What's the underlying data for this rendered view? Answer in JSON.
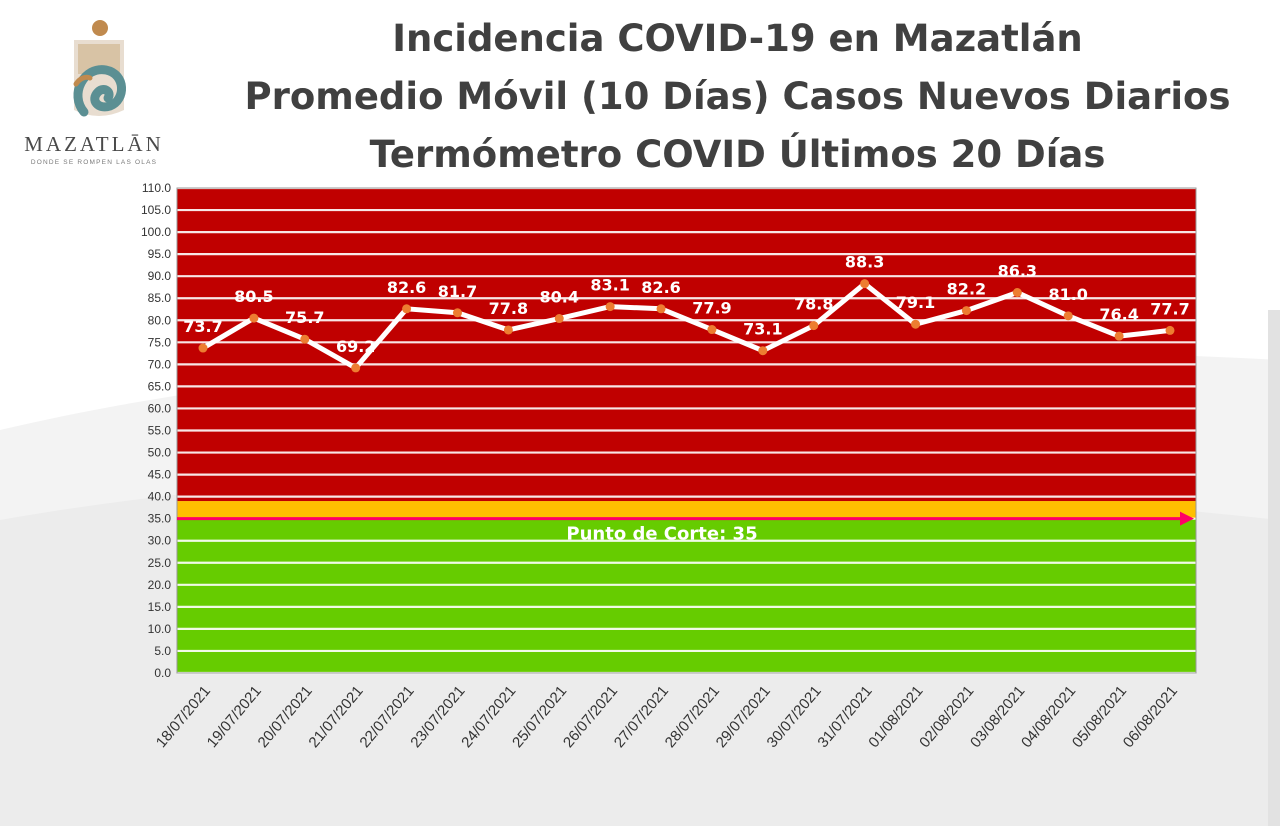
{
  "logo": {
    "name": "MAZATLĀN",
    "tagline": "DONDE SE ROMPEN LAS OLAS"
  },
  "titles": [
    "Incidencia COVID-19 en Mazatlán",
    "Promedio Móvil (10 Días) Casos Nuevos Diarios",
    "Termómetro COVID Últimos 20 Días"
  ],
  "colors": {
    "danger_zone": "#c00000",
    "warning_band": "#ffc000",
    "safe_zone": "#66cc00",
    "cutoff_arrow": "#ff0066",
    "line": "#ffffff",
    "marker": "#ed7d31"
  },
  "chart_data": {
    "type": "line",
    "categories": [
      "18/07/2021",
      "19/07/2021",
      "20/07/2021",
      "21/07/2021",
      "22/07/2021",
      "23/07/2021",
      "24/07/2021",
      "25/07/2021",
      "26/07/2021",
      "27/07/2021",
      "28/07/2021",
      "29/07/2021",
      "30/07/2021",
      "31/07/2021",
      "01/08/2021",
      "02/08/2021",
      "03/08/2021",
      "04/08/2021",
      "05/08/2021",
      "06/08/2021"
    ],
    "values": [
      73.7,
      80.5,
      75.7,
      69.2,
      82.6,
      81.7,
      77.8,
      80.4,
      83.1,
      82.6,
      77.9,
      73.1,
      78.8,
      88.3,
      79.1,
      82.2,
      86.3,
      81.0,
      76.4,
      77.7
    ],
    "data_labels": [
      "73.7",
      "80.5",
      "75.7",
      "69.2",
      "82.6",
      "81.7",
      "77.8",
      "80.4",
      "83.1",
      "82.6",
      "77.9",
      "73.1",
      "78.8",
      "88.3",
      "79.1",
      "82.2",
      "86.3",
      "81.0",
      "76.4",
      "77.7"
    ],
    "ylim": [
      0,
      110
    ],
    "ytick_labels": [
      "0.0",
      "5.0",
      "10.0",
      "15.0",
      "20.0",
      "25.0",
      "30.0",
      "35.0",
      "40.0",
      "45.0",
      "50.0",
      "55.0",
      "60.0",
      "65.0",
      "70.0",
      "75.0",
      "80.0",
      "85.0",
      "90.0",
      "95.0",
      "100.0",
      "105.0",
      "110.0"
    ],
    "bands": [
      {
        "from": 0,
        "to": 35,
        "color": "#66cc00"
      },
      {
        "from": 35,
        "to": 39,
        "color": "#ffc000"
      },
      {
        "from": 39,
        "to": 110,
        "color": "#c00000"
      }
    ],
    "cutoff": {
      "value": 35,
      "label": "Punto de Corte: 35"
    },
    "grid": true
  }
}
